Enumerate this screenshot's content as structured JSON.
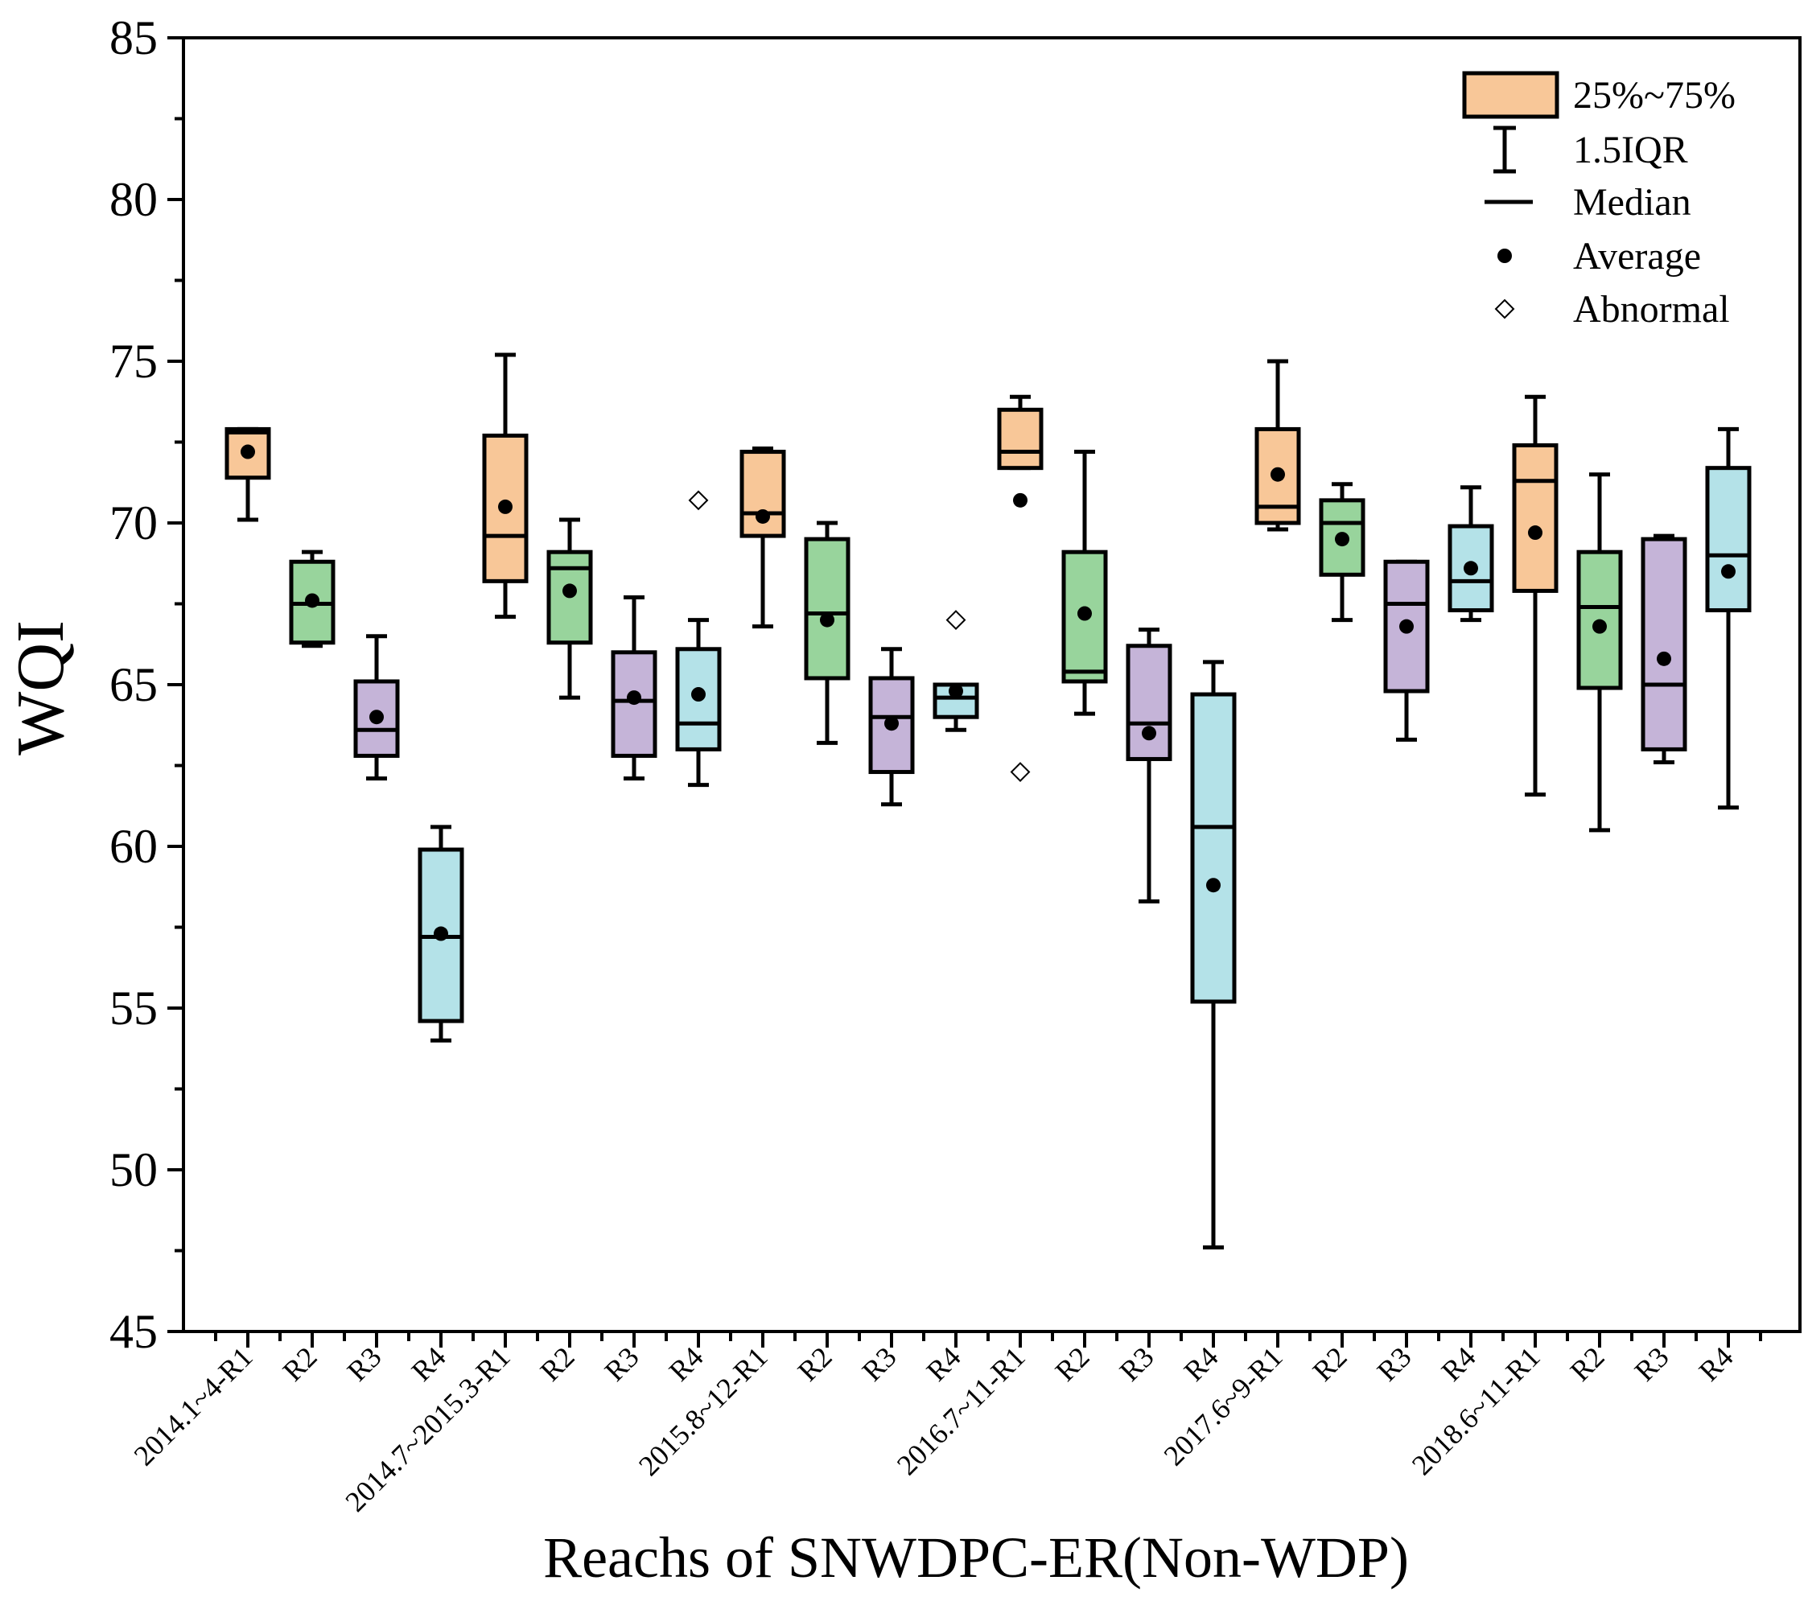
{
  "chart_data": {
    "type": "box",
    "xlabel": "Reachs of SNWDPC-ER(Non-WDP)",
    "ylabel": "WQI",
    "ylim": [
      45,
      85
    ],
    "yticks": [
      45,
      50,
      55,
      60,
      65,
      70,
      75,
      80,
      85
    ],
    "ytick_labels": [
      "45",
      "50",
      "55",
      "60",
      "65",
      "70",
      "75",
      "80",
      "85"
    ],
    "colors": {
      "R1": "#f8c798",
      "R2": "#98d49c",
      "R3": "#c5b4d8",
      "R4": "#b4e2e8"
    },
    "categories": [
      "2014.1~4-R1",
      "R2",
      "R3",
      "R4",
      "2014.7~2015.3-R1",
      "R2",
      "R3",
      "R4",
      "2015.8~12-R1",
      "R2",
      "R3",
      "R4",
      "2016.7~11-R1",
      "R2",
      "R3",
      "R4",
      "2017.6~9-R1",
      "R2",
      "R3",
      "R4",
      "2018.6~11-R1",
      "R2",
      "R3",
      "R4"
    ],
    "series": [
      {
        "reach": "R1",
        "whisker_low": 70.1,
        "q1": 71.4,
        "median": 72.8,
        "q3": 72.9,
        "whisker_high": 72.9,
        "mean": 72.2,
        "outliers": []
      },
      {
        "reach": "R2",
        "whisker_low": 66.2,
        "q1": 66.3,
        "median": 67.5,
        "q3": 68.8,
        "whisker_high": 69.1,
        "mean": 67.6,
        "outliers": []
      },
      {
        "reach": "R3",
        "whisker_low": 62.1,
        "q1": 62.8,
        "median": 63.6,
        "q3": 65.1,
        "whisker_high": 66.5,
        "mean": 64.0,
        "outliers": []
      },
      {
        "reach": "R4",
        "whisker_low": 54.0,
        "q1": 54.6,
        "median": 57.2,
        "q3": 59.9,
        "whisker_high": 60.6,
        "mean": 57.3,
        "outliers": []
      },
      {
        "reach": "R1",
        "whisker_low": 67.1,
        "q1": 68.2,
        "median": 69.6,
        "q3": 72.7,
        "whisker_high": 75.2,
        "mean": 70.5,
        "outliers": []
      },
      {
        "reach": "R2",
        "whisker_low": 64.6,
        "q1": 66.3,
        "median": 68.6,
        "q3": 69.1,
        "whisker_high": 70.1,
        "mean": 67.9,
        "outliers": []
      },
      {
        "reach": "R3",
        "whisker_low": 62.1,
        "q1": 62.8,
        "median": 64.5,
        "q3": 66.0,
        "whisker_high": 67.7,
        "mean": 64.6,
        "outliers": []
      },
      {
        "reach": "R4",
        "whisker_low": 61.9,
        "q1": 63.0,
        "median": 63.8,
        "q3": 66.1,
        "whisker_high": 67.0,
        "mean": 64.7,
        "outliers": [
          70.7
        ]
      },
      {
        "reach": "R1",
        "whisker_low": 66.8,
        "q1": 69.6,
        "median": 70.3,
        "q3": 72.2,
        "whisker_high": 72.3,
        "mean": 70.2,
        "outliers": []
      },
      {
        "reach": "R2",
        "whisker_low": 63.2,
        "q1": 65.2,
        "median": 67.2,
        "q3": 69.5,
        "whisker_high": 70.0,
        "mean": 67.0,
        "outliers": []
      },
      {
        "reach": "R3",
        "whisker_low": 61.3,
        "q1": 62.3,
        "median": 64.0,
        "q3": 65.2,
        "whisker_high": 66.1,
        "mean": 63.8,
        "outliers": []
      },
      {
        "reach": "R4",
        "whisker_low": 63.6,
        "q1": 64.0,
        "median": 64.6,
        "q3": 65.0,
        "whisker_high": 65.0,
        "mean": 64.8,
        "outliers": [
          67.0
        ]
      },
      {
        "reach": "R1",
        "whisker_low": 71.7,
        "q1": 71.7,
        "median": 72.2,
        "q3": 73.5,
        "whisker_high": 73.9,
        "mean": 70.7,
        "outliers": [
          62.3
        ]
      },
      {
        "reach": "R2",
        "whisker_low": 64.1,
        "q1": 65.1,
        "median": 65.4,
        "q3": 69.1,
        "whisker_high": 72.2,
        "mean": 67.2,
        "outliers": []
      },
      {
        "reach": "R3",
        "whisker_low": 58.3,
        "q1": 62.7,
        "median": 63.8,
        "q3": 66.2,
        "whisker_high": 66.7,
        "mean": 63.5,
        "outliers": []
      },
      {
        "reach": "R4",
        "whisker_low": 47.6,
        "q1": 55.2,
        "median": 60.6,
        "q3": 64.7,
        "whisker_high": 65.7,
        "mean": 58.8,
        "outliers": []
      },
      {
        "reach": "R1",
        "whisker_low": 69.8,
        "q1": 70.0,
        "median": 70.5,
        "q3": 72.9,
        "whisker_high": 75.0,
        "mean": 71.5,
        "outliers": []
      },
      {
        "reach": "R2",
        "whisker_low": 67.0,
        "q1": 68.4,
        "median": 70.0,
        "q3": 70.7,
        "whisker_high": 71.2,
        "mean": 69.5,
        "outliers": []
      },
      {
        "reach": "R3",
        "whisker_low": 63.3,
        "q1": 64.8,
        "median": 67.5,
        "q3": 68.8,
        "whisker_high": 68.8,
        "mean": 66.8,
        "outliers": []
      },
      {
        "reach": "R4",
        "whisker_low": 67.0,
        "q1": 67.3,
        "median": 68.2,
        "q3": 69.9,
        "whisker_high": 71.1,
        "mean": 68.6,
        "outliers": []
      },
      {
        "reach": "R1",
        "whisker_low": 61.6,
        "q1": 67.9,
        "median": 71.3,
        "q3": 72.4,
        "whisker_high": 73.9,
        "mean": 69.7,
        "outliers": []
      },
      {
        "reach": "R2",
        "whisker_low": 60.5,
        "q1": 64.9,
        "median": 67.4,
        "q3": 69.1,
        "whisker_high": 71.5,
        "mean": 66.8,
        "outliers": []
      },
      {
        "reach": "R3",
        "whisker_low": 62.6,
        "q1": 63.0,
        "median": 65.0,
        "q3": 69.5,
        "whisker_high": 69.6,
        "mean": 65.8,
        "outliers": []
      },
      {
        "reach": "R4",
        "whisker_low": 61.2,
        "q1": 67.3,
        "median": 69.0,
        "q3": 71.7,
        "whisker_high": 72.9,
        "mean": 68.5,
        "outliers": []
      }
    ],
    "legend": {
      "position": "top-right",
      "items": [
        {
          "symbol": "box",
          "label": "25%~75%"
        },
        {
          "symbol": "whisker",
          "label": "1.5IQR"
        },
        {
          "symbol": "line",
          "label": "Median"
        },
        {
          "symbol": "dot",
          "label": "Average"
        },
        {
          "symbol": "diamond",
          "label": "Abnormal"
        }
      ]
    },
    "grid": false
  }
}
